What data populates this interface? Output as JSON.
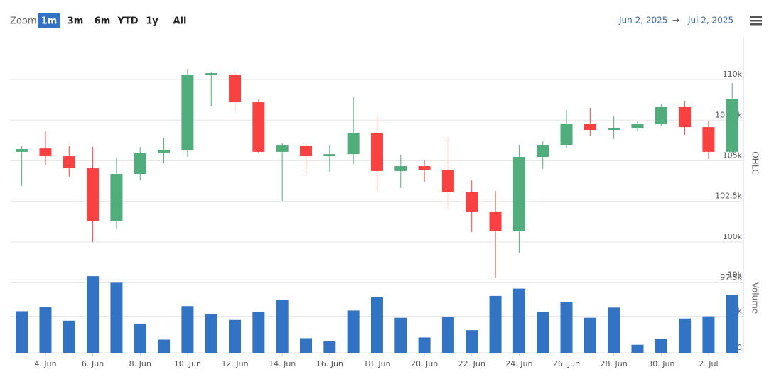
{
  "range_selector": {
    "label": "Zoom",
    "buttons": [
      "1m",
      "3m",
      "6m",
      "YTD",
      "1y",
      "All"
    ],
    "selected": 0
  },
  "date_range": {
    "from": "Jun 2, 2025",
    "arrow": "→",
    "to": "Jul 2, 2025"
  },
  "chart_data": {
    "type": "candlestick",
    "x": [
      "2025-06-03",
      "2025-06-04",
      "2025-06-05",
      "2025-06-06",
      "2025-06-07",
      "2025-06-08",
      "2025-06-09",
      "2025-06-10",
      "2025-06-11",
      "2025-06-12",
      "2025-06-13",
      "2025-06-14",
      "2025-06-15",
      "2025-06-16",
      "2025-06-17",
      "2025-06-18",
      "2025-06-19",
      "2025-06-20",
      "2025-06-21",
      "2025-06-22",
      "2025-06-23",
      "2025-06-24",
      "2025-06-25",
      "2025-06-26",
      "2025-06-27",
      "2025-06-28",
      "2025-06-29",
      "2025-06-30",
      "2025-07-01",
      "2025-07-02",
      "2025-07-03"
    ],
    "open": [
      105550,
      105760,
      105280,
      104540,
      101270,
      104190,
      105460,
      105630,
      110300,
      110300,
      108600,
      105550,
      105940,
      105280,
      105410,
      106720,
      104370,
      104670,
      104450,
      103060,
      101880,
      100660,
      105240,
      105980,
      107290,
      106900,
      106990,
      107250,
      108300,
      107070,
      105550
    ],
    "high": [
      105940,
      106810,
      105900,
      105850,
      105200,
      105850,
      106420,
      110660,
      110440,
      110440,
      108780,
      106070,
      106070,
      105980,
      108950,
      107730,
      105370,
      105020,
      106460,
      103800,
      103140,
      105980,
      106200,
      108120,
      108250,
      107730,
      107420,
      108470,
      108690,
      107470,
      109780
    ],
    "low": [
      103450,
      104760,
      104020,
      100000,
      100830,
      103800,
      104850,
      105240,
      108340,
      108030,
      105500,
      102530,
      104150,
      104320,
      104800,
      103140,
      103320,
      103710,
      102100,
      100610,
      97820,
      99340,
      104500,
      105810,
      106510,
      106330,
      106810,
      107160,
      106590,
      105100,
      105460
    ],
    "close": [
      105720,
      105280,
      104540,
      101270,
      104190,
      105460,
      105680,
      110300,
      110390,
      108600,
      105550,
      105980,
      105280,
      105410,
      106720,
      104370,
      104670,
      104450,
      103060,
      101880,
      100660,
      105240,
      105980,
      107290,
      106900,
      106990,
      107250,
      108300,
      107070,
      105550,
      108820
    ],
    "up_color": "#52ad7c",
    "down_color": "#fa4141",
    "y_label": "OHLC",
    "ylim": [
      97400,
      112600
    ],
    "yticks": [
      {
        "value": 97500,
        "label": "97.5k"
      },
      {
        "value": 100000,
        "label": "100k"
      },
      {
        "value": 102500,
        "label": "102.5k"
      },
      {
        "value": 105000,
        "label": "105k"
      },
      {
        "value": 107500,
        "label": "107.5k"
      },
      {
        "value": 110000,
        "label": "110k"
      }
    ],
    "grid": true,
    "xticks": [
      {
        "value": "2025-06-04",
        "label": "4. Jun"
      },
      {
        "value": "2025-06-06",
        "label": "6. Jun"
      },
      {
        "value": "2025-06-08",
        "label": "8. Jun"
      },
      {
        "value": "2025-06-10",
        "label": "10. Jun"
      },
      {
        "value": "2025-06-12",
        "label": "12. Jun"
      },
      {
        "value": "2025-06-14",
        "label": "14. Jun"
      },
      {
        "value": "2025-06-16",
        "label": "16. Jun"
      },
      {
        "value": "2025-06-18",
        "label": "18. Jun"
      },
      {
        "value": "2025-06-20",
        "label": "20. Jun"
      },
      {
        "value": "2025-06-22",
        "label": "22. Jun"
      },
      {
        "value": "2025-06-24",
        "label": "24. Jun"
      },
      {
        "value": "2025-06-26",
        "label": "26. Jun"
      },
      {
        "value": "2025-06-28",
        "label": "28. Jun"
      },
      {
        "value": "2025-06-30",
        "label": "30. Jun"
      },
      {
        "value": "2025-07-02",
        "label": "2. Jul"
      }
    ],
    "volume": {
      "type": "bar",
      "y_label": "Volume",
      "color": "#3373c4",
      "values": [
        5700,
        6300,
        4400,
        10500,
        9600,
        4000,
        1800,
        6400,
        5300,
        4500,
        5600,
        7300,
        2000,
        1600,
        5800,
        7600,
        4800,
        2100,
        4900,
        3100,
        7800,
        8800,
        5600,
        7000,
        4800,
        6200,
        1100,
        1900,
        4700,
        5000,
        7900
      ],
      "ylim": [
        0,
        11000
      ],
      "yticks": [
        0,
        {
          "value": 5000,
          "label": "5k"
        },
        {
          "value": 10000,
          "label": "10k"
        }
      ]
    }
  }
}
